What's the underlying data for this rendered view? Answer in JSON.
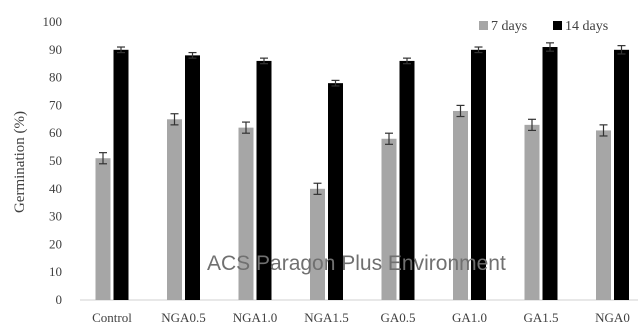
{
  "chart_data": {
    "type": "bar",
    "title": "",
    "xlabel": "",
    "ylabel": "Germination (%)",
    "ylim": [
      0,
      100
    ],
    "yticks": [
      0,
      10,
      20,
      30,
      40,
      50,
      60,
      70,
      80,
      90,
      100
    ],
    "categories": [
      "Control",
      "NGA0.5",
      "NGA1.0",
      "NGA1.5",
      "GA0.5",
      "GA1.0",
      "GA1.5",
      "NGA0"
    ],
    "series": [
      {
        "name": "7 days",
        "color": "#a6a6a6",
        "values": [
          51,
          65,
          62,
          40,
          58,
          68,
          63,
          61
        ],
        "errors": [
          2,
          2,
          2,
          2,
          2,
          2,
          2,
          2
        ]
      },
      {
        "name": "14 days",
        "color": "#000000",
        "values": [
          90,
          88,
          86,
          78,
          86,
          90,
          91,
          90
        ],
        "errors": [
          1,
          1,
          1,
          1,
          1,
          1,
          1.5,
          1.5
        ]
      }
    ],
    "grid": false,
    "legend": "top-right"
  },
  "watermark": "ACS Paragon Plus Environment"
}
